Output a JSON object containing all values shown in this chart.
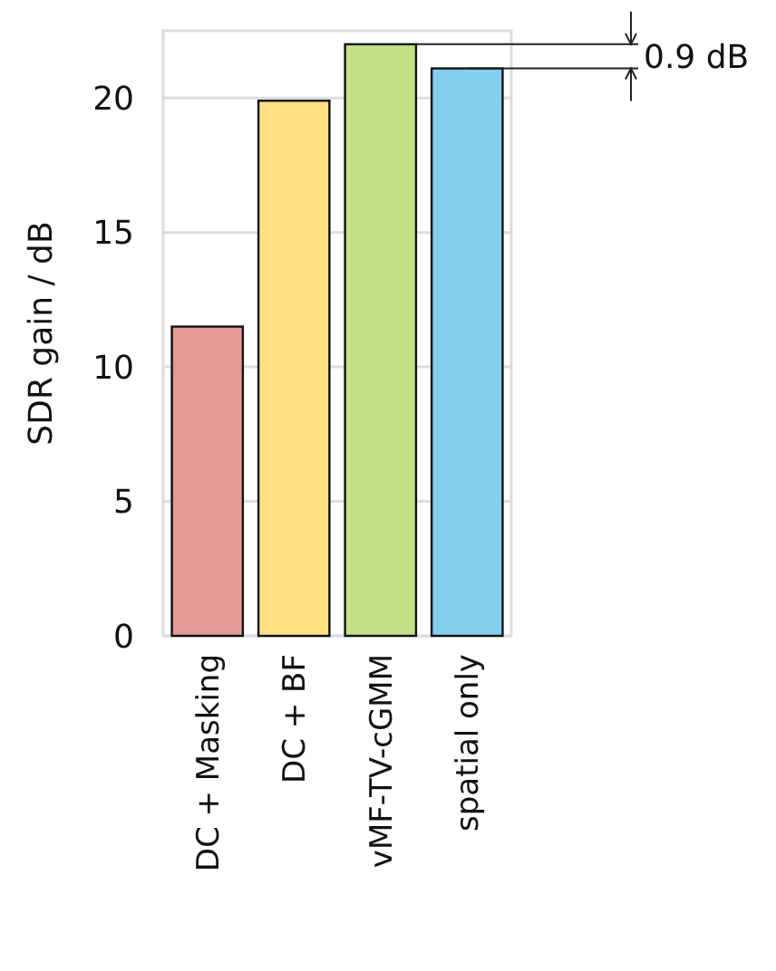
{
  "chart_data": {
    "type": "bar",
    "ylabel": "SDR gain / dB",
    "categories": [
      "DC + Masking",
      "DC + BF",
      "vMF-TV-cGMM",
      "spatial only"
    ],
    "values": [
      11.5,
      19.9,
      22.0,
      21.1
    ],
    "colors": [
      "#e39a93",
      "#fde182",
      "#c3df83",
      "#83cfee"
    ],
    "ylim": [
      0,
      22.5
    ],
    "yticks": [
      0,
      5,
      10,
      15,
      20
    ],
    "grid": "y",
    "annotations": [
      {
        "text": "0.9 dB",
        "x": "spatial only",
        "y": 21.1
      }
    ]
  }
}
